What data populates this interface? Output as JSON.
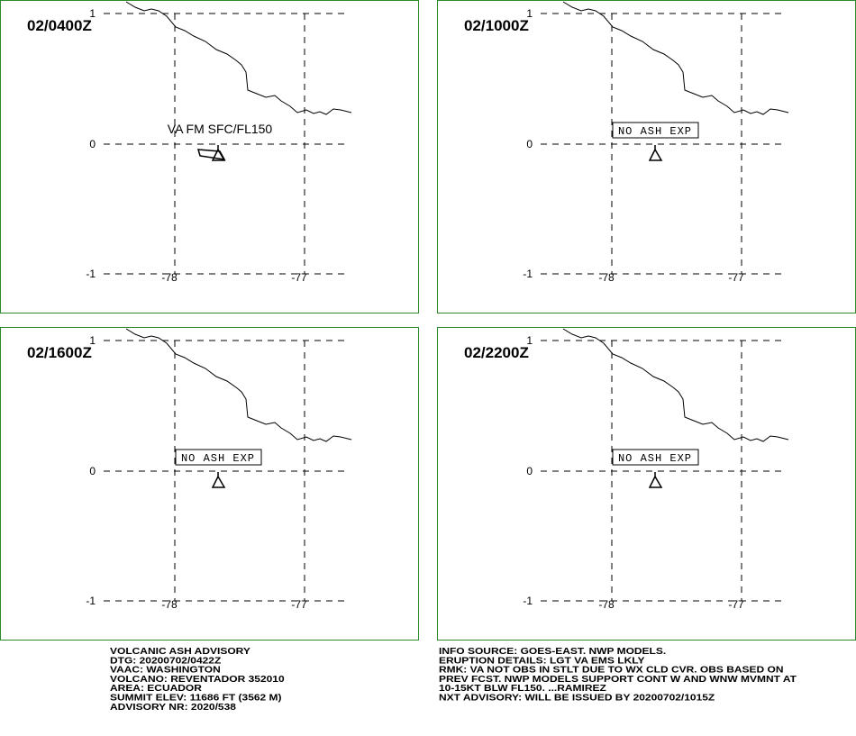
{
  "panels": [
    {
      "time": "02/0400Z",
      "annotation": "VA FM SFC/FL150",
      "annotation_boxed": false,
      "lat_labels": [
        "1",
        "0",
        "-1"
      ],
      "lon_labels": [
        "-78",
        "-77"
      ]
    },
    {
      "time": "02/1000Z",
      "annotation": "NO ASH EXP",
      "annotation_boxed": true,
      "lat_labels": [
        "1",
        "0",
        "-1"
      ],
      "lon_labels": [
        "-78",
        "-77"
      ]
    },
    {
      "time": "02/1600Z",
      "annotation": "NO ASH EXP",
      "annotation_boxed": true,
      "lat_labels": [
        "1",
        "0",
        "-1"
      ],
      "lon_labels": [
        "-78",
        "-77"
      ]
    },
    {
      "time": "02/2200Z",
      "annotation": "NO ASH EXP",
      "annotation_boxed": true,
      "lat_labels": [
        "1",
        "0",
        "-1"
      ],
      "lon_labels": [
        "-78",
        "-77"
      ]
    }
  ],
  "advisory_left": [
    "VOLCANIC ASH ADVISORY",
    "DTG: 20200702/0422Z",
    "VAAC: WASHINGTON",
    "VOLCANO: REVENTADOR 352010",
    "AREA: ECUADOR",
    "SUMMIT ELEV: 11686 FT (3562 M)",
    "ADVISORY NR: 2020/538"
  ],
  "advisory_right": [
    "INFO SOURCE: GOES-EAST. NWP MODELS.",
    "ERUPTION DETAILS: LGT VA EMS LKLY",
    "RMK: VA NOT OBS IN STLT DUE TO WX CLD CVR. OBS BASED ON",
    "PREV FCST. NWP MODELS SUPPORT CONT W AND WNW MVMNT AT",
    "10-15KT BLW FL150. ...RAMIREZ",
    "NXT ADVISORY: WILL BE ISSUED BY 20200702/1015Z"
  ]
}
